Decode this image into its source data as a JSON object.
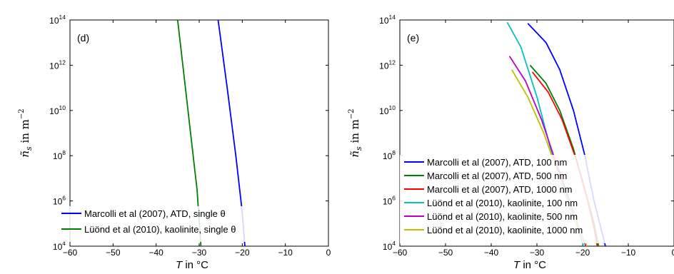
{
  "chart_data": [
    {
      "type": "line",
      "panel_label": "(d)",
      "xlabel_italic": "T",
      "xlabel_rest": " in °C",
      "ylabel_symbol": "ñ",
      "ylabel_sub": "s",
      "ylabel_rest": " in m",
      "ylabel_exp": "−2",
      "xlim": [
        -60,
        0
      ],
      "ylim_log10": [
        4,
        14
      ],
      "y_scale": "log",
      "x_ticks": [
        "−60",
        "−50",
        "−40",
        "−30",
        "−20",
        "−10",
        "0"
      ],
      "y_tick_exponents": [
        "4",
        "6",
        "8",
        "10",
        "12",
        "14"
      ],
      "y_tick_base": "10",
      "grid": false,
      "legend_position": "lower-left",
      "series": [
        {
          "name": "Marcolli et al (2007), ATD, single θ",
          "color": "#0000ff",
          "points": [
            [
              -25.6,
              14
            ],
            [
              -23.5,
              11
            ],
            [
              -21.5,
              8
            ],
            [
              -20.0,
              5.5
            ],
            [
              -19.4,
              4
            ]
          ]
        },
        {
          "name": "Lüönd et al (2010), kaolinite, single θ",
          "color": "#008000",
          "points": [
            [
              -35.0,
              14
            ],
            [
              -33.5,
              11.5
            ],
            [
              -32.0,
              9
            ],
            [
              -30.5,
              6.5
            ],
            [
              -29.6,
              4
            ]
          ]
        }
      ]
    },
    {
      "type": "line",
      "panel_label": "(e)",
      "xlabel_italic": "T",
      "xlabel_rest": " in °C",
      "ylabel_symbol": "ñ",
      "ylabel_sub": "s",
      "ylabel_rest": " in m",
      "ylabel_exp": "−2",
      "xlim": [
        -60,
        0
      ],
      "ylim_log10": [
        4,
        14
      ],
      "y_scale": "log",
      "x_ticks": [
        "−60",
        "−50",
        "−40",
        "−30",
        "−20",
        "−10",
        "0"
      ],
      "y_tick_exponents": [
        "4",
        "6",
        "8",
        "10",
        "12",
        "14"
      ],
      "y_tick_base": "10",
      "grid": false,
      "legend_position": "lower-left",
      "series": [
        {
          "name": "Marcolli et al (2007), ATD, 100 nm",
          "color": "#0000ff",
          "points": [
            [
              -32.0,
              13.85
            ],
            [
              -28.0,
              13.0
            ],
            [
              -25.0,
              11.8
            ],
            [
              -22.0,
              10.0
            ],
            [
              -19.5,
              8.0
            ],
            [
              -17.5,
              6.0
            ],
            [
              -16.0,
              4.8
            ],
            [
              -15.0,
              4.0
            ]
          ]
        },
        {
          "name": "Marcolli et al (2007), ATD, 500 nm",
          "color": "#008000",
          "points": [
            [
              -31.5,
              12.0
            ],
            [
              -28.0,
              11.2
            ],
            [
              -25.0,
              10.0
            ],
            [
              -22.0,
              8.3
            ],
            [
              -19.5,
              6.5
            ],
            [
              -17.5,
              5.0
            ],
            [
              -16.5,
              4.0
            ]
          ]
        },
        {
          "name": "Marcolli et al (2007), ATD, 1000 nm",
          "color": "#ff0000",
          "points": [
            [
              -31.0,
              11.7
            ],
            [
              -27.5,
              10.8
            ],
            [
              -24.5,
              9.6
            ],
            [
              -21.5,
              7.9
            ],
            [
              -19.0,
              6.1
            ],
            [
              -17.5,
              4.8
            ],
            [
              -16.8,
              4.0
            ]
          ]
        },
        {
          "name": "Lüönd et al (2010), kaolinite, 100 nm",
          "color": "#00c0c0",
          "points": [
            [
              -36.5,
              13.9
            ],
            [
              -33.5,
              12.8
            ],
            [
              -30.0,
              10.6
            ],
            [
              -27.0,
              8.3
            ],
            [
              -24.0,
              6.4
            ],
            [
              -21.5,
              5.1
            ],
            [
              -19.8,
              4.0
            ]
          ]
        },
        {
          "name": "Lüönd et al (2010), kaolinite, 500 nm",
          "color": "#c000c0",
          "points": [
            [
              -36.0,
              12.4
            ],
            [
              -32.5,
              11.3
            ],
            [
              -29.0,
              9.6
            ],
            [
              -26.0,
              7.8
            ],
            [
              -23.0,
              6.1
            ],
            [
              -20.8,
              4.8
            ],
            [
              -19.3,
              4.0
            ]
          ]
        },
        {
          "name": "Lüönd et al (2010), kaolinite, 1000 nm",
          "color": "#c0c000",
          "points": [
            [
              -35.5,
              11.8
            ],
            [
              -32.0,
              10.6
            ],
            [
              -28.5,
              9.0
            ],
            [
              -25.5,
              7.3
            ],
            [
              -22.5,
              5.7
            ],
            [
              -20.3,
              4.5
            ],
            [
              -19.0,
              4.0
            ]
          ]
        }
      ]
    }
  ]
}
